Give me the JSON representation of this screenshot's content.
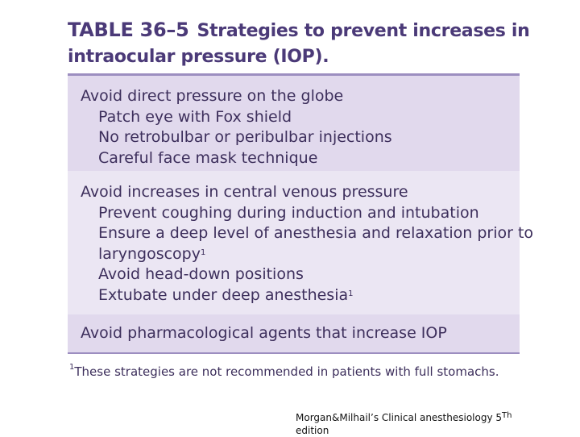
{
  "title": {
    "number": "TABLE 36–5",
    "caption": "Strategies to prevent increases in intraocular pressure (IOP)."
  },
  "sections": [
    {
      "heading": "Avoid direct pressure on the globe",
      "items": [
        "Patch eye with Fox shield",
        "No retrobulbar or peribulbar injections",
        "Careful face mask technique"
      ]
    },
    {
      "heading": "Avoid increases in central venous pressure",
      "items": [
        "Prevent coughing during induction and intubation",
        "Ensure a deep level of anesthesia and relaxation prior to",
        "laryngoscopy",
        "Avoid head-down positions",
        "Extubate under deep anesthesia"
      ]
    },
    {
      "heading": "Avoid pharmacological agents that increase IOP",
      "items": []
    }
  ],
  "footnote_marker": "1",
  "footnote": "These strategies are not recommended in patients with full stomachs.",
  "citation": {
    "text": "Morgan&Milhail’s Clinical anesthesiology 5",
    "superscript": "Th",
    "continued": "edition"
  },
  "colors": {
    "title": "#4b3a78",
    "text": "#3d2f5c",
    "band_a": "#e1d9ed",
    "band_b": "#ebe6f3",
    "rule": "#9c8ec0"
  }
}
